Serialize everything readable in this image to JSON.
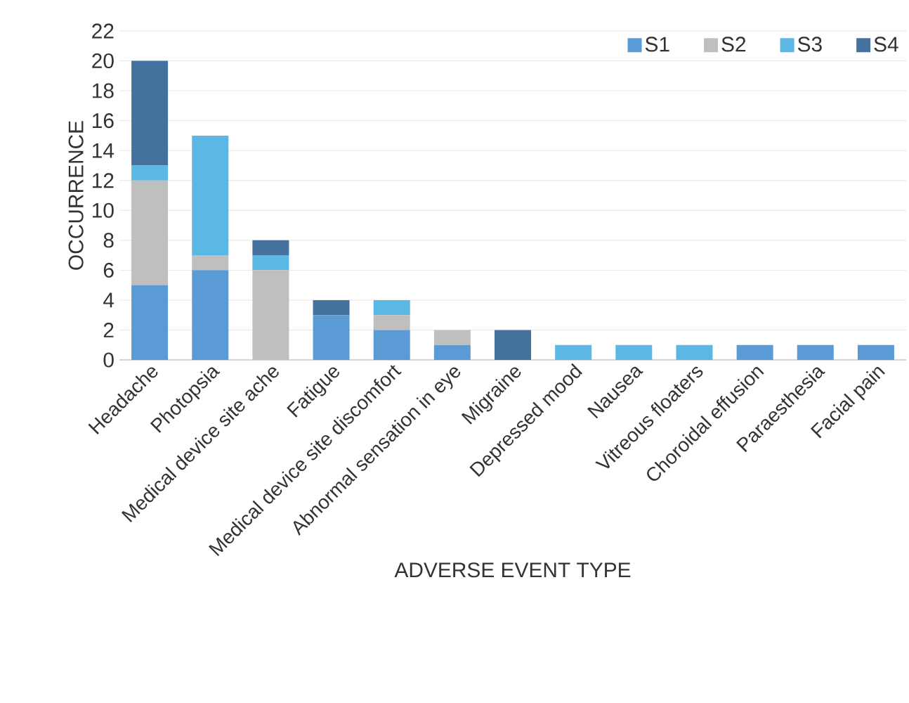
{
  "chart_data": {
    "type": "bar",
    "stacked": true,
    "xlabel": "ADVERSE EVENT TYPE",
    "ylabel": "OCCURRENCE",
    "categories": [
      "Headache",
      "Photopsia",
      "Medical device site ache",
      "Fatigue",
      "Medical device site discomfort",
      "Abnormal sensation in eye",
      "Migraine",
      "Depressed mood",
      "Nausea",
      "Vitreous floaters",
      "Choroidal effusion",
      "Paraesthesia",
      "Facial pain"
    ],
    "series": [
      {
        "name": "S1",
        "color": "#5b9bd5",
        "values": [
          5,
          6,
          0,
          3,
          2,
          1,
          0,
          0,
          0,
          0,
          1,
          1,
          1
        ]
      },
      {
        "name": "S2",
        "color": "#bfbfbf",
        "values": [
          7,
          1,
          6,
          0,
          1,
          1,
          0,
          0,
          0,
          0,
          0,
          0,
          0
        ]
      },
      {
        "name": "S3",
        "color": "#5bb8e4",
        "values": [
          1,
          8,
          1,
          0,
          1,
          0,
          0,
          1,
          1,
          1,
          0,
          0,
          0
        ]
      },
      {
        "name": "S4",
        "color": "#44719e",
        "values": [
          7,
          0,
          1,
          1,
          0,
          0,
          2,
          0,
          0,
          0,
          0,
          0,
          0
        ]
      }
    ],
    "ylim": [
      0,
      22
    ],
    "yticks": [
      0,
      2,
      4,
      6,
      8,
      10,
      12,
      14,
      16,
      18,
      20,
      22
    ],
    "grid": "y",
    "legend": "top right"
  }
}
